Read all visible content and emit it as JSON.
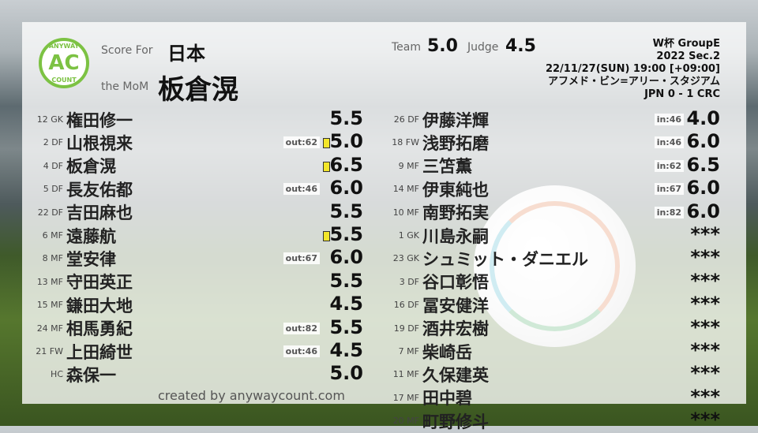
{
  "header": {
    "score_for_label": "Score For",
    "team": "日本",
    "mom_label": "the MoM",
    "mom": "板倉滉",
    "team_label": "Team",
    "team_score": "5.0",
    "judge_label": "Judge",
    "judge_score": "4.5",
    "logo": {
      "text": "AC",
      "top": "ANYWAY",
      "bottom": "COUNT",
      "color": "#7cc243"
    }
  },
  "match": {
    "competition": "W杯 GroupE",
    "season": "2022 Sec.2",
    "datetime": "22/11/27(SUN) 19:00 [+09:00]",
    "stadium": "アフメド・ビン=アリー・スタジアム",
    "result": "JPN 0 - 1 CRC"
  },
  "left": [
    {
      "np": "12 GK",
      "name": "権田修一",
      "score": "5.5"
    },
    {
      "np": "2 DF",
      "name": "山根視来",
      "score": "5.0",
      "badge": "out:62",
      "card": "yellow"
    },
    {
      "np": "4 DF",
      "name": "板倉滉",
      "score": "6.5",
      "card": "yellow"
    },
    {
      "np": "5 DF",
      "name": "長友佑都",
      "score": "6.0",
      "badge": "out:46"
    },
    {
      "np": "22 DF",
      "name": "吉田麻也",
      "score": "5.5"
    },
    {
      "np": "6 MF",
      "name": "遠藤航",
      "score": "5.5",
      "card": "yellow"
    },
    {
      "np": "8 MF",
      "name": "堂安律",
      "score": "6.0",
      "badge": "out:67"
    },
    {
      "np": "13 MF",
      "name": "守田英正",
      "score": "5.5"
    },
    {
      "np": "15 MF",
      "name": "鎌田大地",
      "score": "4.5"
    },
    {
      "np": "24 MF",
      "name": "相馬勇紀",
      "score": "5.5",
      "badge": "out:82"
    },
    {
      "np": "21 FW",
      "name": "上田綺世",
      "score": "4.5",
      "badge": "out:46"
    },
    {
      "np": "HC",
      "name": "森保一",
      "score": "5.0"
    }
  ],
  "right": [
    {
      "np": "26 DF",
      "name": "伊藤洋輝",
      "score": "4.0",
      "badge": "in:46"
    },
    {
      "np": "18 FW",
      "name": "浅野拓磨",
      "score": "6.0",
      "badge": "in:46"
    },
    {
      "np": "9 MF",
      "name": "三笘薫",
      "score": "6.5",
      "badge": "in:62"
    },
    {
      "np": "14 MF",
      "name": "伊東純也",
      "score": "6.0",
      "badge": "in:67"
    },
    {
      "np": "10 MF",
      "name": "南野拓実",
      "score": "6.0",
      "badge": "in:82"
    },
    {
      "np": "1 GK",
      "name": "川島永嗣",
      "score": "***"
    },
    {
      "np": "23 GK",
      "name": "シュミット・ダニエル",
      "score": "***"
    },
    {
      "np": "3 DF",
      "name": "谷口彰悟",
      "score": "***"
    },
    {
      "np": "16 DF",
      "name": "冨安健洋",
      "score": "***"
    },
    {
      "np": "19 DF",
      "name": "酒井宏樹",
      "score": "***"
    },
    {
      "np": "7 MF",
      "name": "柴崎岳",
      "score": "***"
    },
    {
      "np": "11 MF",
      "name": "久保建英",
      "score": "***"
    },
    {
      "np": "17 MF",
      "name": "田中碧",
      "score": "***"
    },
    {
      "np": "20 MF",
      "name": "町野修斗",
      "score": "***"
    }
  ],
  "credit": "created by anywaycount.com"
}
